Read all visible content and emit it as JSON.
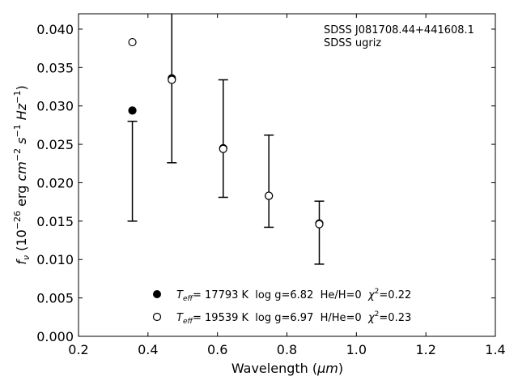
{
  "chart_data": {
    "type": "scatter",
    "xlabel_main": "Wavelength (",
    "xlabel_unit": "μm",
    "xlabel_close": ")",
    "ylabel": {
      "f": "f",
      "nu": "ν",
      "pre": " (10",
      "exp1": "−26",
      "erg": " erg ",
      "cm": "cm",
      "exp2": "−2",
      "s": " s",
      "exp3": "−1",
      "hz": " Hz",
      "exp4": "−1",
      "close": ")"
    },
    "xlim": [
      0.2,
      1.4
    ],
    "ylim": [
      0.0,
      0.042
    ],
    "x_ticks": [
      "0.2",
      "0.4",
      "0.6",
      "0.8",
      "1.0",
      "1.2",
      "1.4"
    ],
    "y_ticks": [
      "0.000",
      "0.005",
      "0.010",
      "0.015",
      "0.020",
      "0.025",
      "0.030",
      "0.035",
      "0.040"
    ],
    "observed": {
      "x": [
        0.3551,
        0.4686,
        0.6166,
        0.748,
        0.8932
      ],
      "y": [
        0.0215,
        0.0335,
        0.02575,
        0.0202,
        0.0135
      ],
      "yerr": [
        0.0065,
        0.0109,
        0.00765,
        0.006,
        0.0041
      ]
    },
    "series": [
      {
        "marker": "filled",
        "x": [
          0.3551,
          0.4686,
          0.6166,
          0.748,
          0.8932
        ],
        "y": [
          0.0294,
          0.0336,
          0.0245,
          0.0183,
          0.0147
        ],
        "legend_T": "T",
        "legend_sub": "eff",
        "legend_text": "= 17793 K  log g=6.82  He/H=0  ",
        "legend_chi": "χ",
        "legend_sup": "2",
        "legend_end": "=0.22"
      },
      {
        "marker": "open",
        "x": [
          0.3551,
          0.4686,
          0.6166,
          0.748,
          0.8932
        ],
        "y": [
          0.0383,
          0.0334,
          0.0244,
          0.0183,
          0.0146
        ],
        "legend_T": "T",
        "legend_sub": "eff",
        "legend_text": "= 19539 K  log g=6.97  H/He=0  ",
        "legend_chi": "χ",
        "legend_sup": "2",
        "legend_end": "=0.23"
      }
    ],
    "annotations": [
      "SDSS J081708.44+441608.1",
      "SDSS ugriz"
    ]
  }
}
